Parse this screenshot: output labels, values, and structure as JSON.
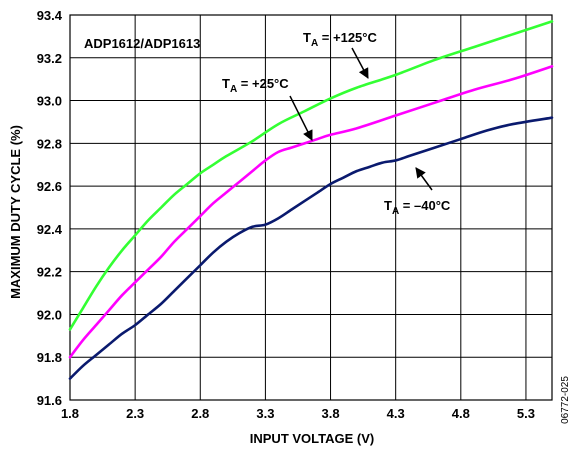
{
  "chart_data": {
    "type": "line",
    "title": "ADP1612/ADP1613",
    "xlabel": "INPUT VOLTAGE (V)",
    "ylabel": "MAXIMUM DUTY CYCLE (%)",
    "xlim": [
      1.8,
      5.5
    ],
    "ylim": [
      91.6,
      93.4
    ],
    "xticks": [
      "1.8",
      "2.3",
      "2.8",
      "3.3",
      "3.8",
      "4.3",
      "4.8",
      "5.3"
    ],
    "xtick_values": [
      1.8,
      2.3,
      2.8,
      3.3,
      3.8,
      4.3,
      4.8,
      5.3
    ],
    "yticks": [
      "91.6",
      "91.8",
      "92.0",
      "92.2",
      "92.4",
      "92.6",
      "92.8",
      "93.0",
      "93.2",
      "93.4"
    ],
    "ytick_values": [
      91.6,
      91.8,
      92.0,
      92.2,
      92.4,
      92.6,
      92.8,
      93.0,
      93.2,
      93.4
    ],
    "grid": true,
    "series": [
      {
        "color": "#33ff33",
        "x": [
          1.8,
          1.9,
          2.0,
          2.1,
          2.2,
          2.3,
          2.4,
          2.5,
          2.6,
          2.7,
          2.8,
          2.9,
          3.0,
          3.2,
          3.4,
          3.6,
          3.8,
          4.0,
          4.3,
          4.6,
          4.9,
          5.2,
          5.5
        ],
        "y": [
          91.93,
          92.03,
          92.13,
          92.22,
          92.3,
          92.37,
          92.44,
          92.5,
          92.56,
          92.61,
          92.66,
          92.7,
          92.74,
          92.81,
          92.89,
          92.95,
          93.01,
          93.06,
          93.12,
          93.19,
          93.25,
          93.31,
          93.37
        ],
        "label_text": "T",
        "label_sub": "A",
        "label_rest": " = +125°C"
      },
      {
        "color": "#ff00ff",
        "x": [
          1.8,
          1.9,
          2.0,
          2.1,
          2.2,
          2.3,
          2.4,
          2.5,
          2.6,
          2.7,
          2.8,
          2.9,
          3.0,
          3.1,
          3.2,
          3.3,
          3.4,
          3.5,
          3.6,
          3.7,
          3.8,
          4.0,
          4.3,
          4.6,
          4.9,
          5.2,
          5.5
        ],
        "y": [
          91.8,
          91.88,
          91.95,
          92.02,
          92.09,
          92.15,
          92.21,
          92.27,
          92.34,
          92.4,
          92.46,
          92.52,
          92.57,
          92.62,
          92.67,
          92.72,
          92.76,
          92.78,
          92.8,
          92.82,
          92.84,
          92.87,
          92.93,
          92.99,
          93.05,
          93.1,
          93.16
        ],
        "label_text": "T",
        "label_sub": "A",
        "label_rest": " = +25°C"
      },
      {
        "color": "#0a1a6e",
        "x": [
          1.8,
          1.9,
          2.0,
          2.1,
          2.2,
          2.3,
          2.4,
          2.5,
          2.6,
          2.7,
          2.8,
          2.9,
          3.0,
          3.1,
          3.2,
          3.3,
          3.4,
          3.5,
          3.6,
          3.7,
          3.8,
          3.9,
          4.0,
          4.1,
          4.2,
          4.3,
          4.4,
          4.5,
          4.6,
          4.8,
          5.0,
          5.2,
          5.5
        ],
        "y": [
          91.7,
          91.76,
          91.81,
          91.86,
          91.91,
          91.95,
          92.0,
          92.05,
          92.11,
          92.17,
          92.23,
          92.29,
          92.34,
          92.38,
          92.41,
          92.42,
          92.45,
          92.49,
          92.53,
          92.57,
          92.61,
          92.64,
          92.67,
          92.69,
          92.71,
          92.72,
          92.74,
          92.76,
          92.78,
          92.82,
          92.86,
          92.89,
          92.92
        ],
        "label_text": "T",
        "label_sub": "A",
        "label_rest": " = –40°C"
      }
    ]
  },
  "figure_id": "06772-025"
}
